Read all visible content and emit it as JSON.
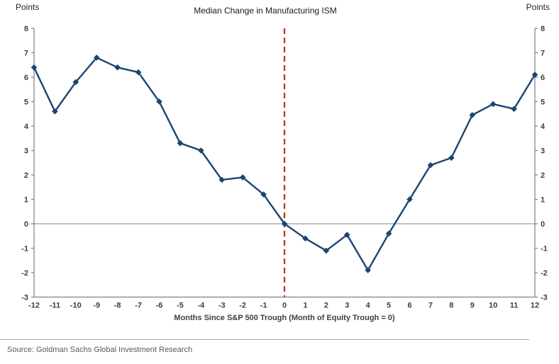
{
  "header": {
    "title": "Median Change in Manufacturing ISM"
  },
  "chart_data": {
    "type": "line",
    "title": "Median Change in Manufacturing ISM",
    "series_name": "Median change in Manufacturing ISM (points)",
    "x": [
      -12,
      -11,
      -10,
      -9,
      -8,
      -7,
      -6,
      -5,
      -4,
      -3,
      -2,
      -1,
      0,
      1,
      2,
      3,
      4,
      5,
      6,
      7,
      8,
      9,
      10,
      11,
      12
    ],
    "values": [
      6.4,
      4.6,
      5.8,
      6.8,
      6.4,
      6.2,
      5.0,
      3.3,
      3.0,
      1.8,
      1.9,
      1.2,
      0.0,
      -0.6,
      -1.1,
      -0.45,
      -1.9,
      -0.4,
      1.0,
      2.4,
      2.7,
      4.45,
      4.9,
      4.7,
      6.1
    ],
    "xlabel": "Months Since S&P 500 Trough (Month of Equity Trough = 0)",
    "ylabel_left": "Points",
    "ylabel_right": "Points",
    "xlim": [
      -12,
      12
    ],
    "ylim": [
      -3,
      8
    ],
    "y_tick_step": 1,
    "x_tick_step": 1,
    "grid": false,
    "zero_line": true,
    "event_line_x": 0,
    "marker": "diamond",
    "legend_position": "none",
    "colors": {
      "line": "#1c4471",
      "marker": "#1c4471",
      "event_line": "#c23b36",
      "zero_line": "#808080",
      "axis": "#808080",
      "tick_text": "#3f3f3f"
    }
  },
  "footer": {
    "source": "Source: Goldman Sachs Global Investment Research"
  }
}
